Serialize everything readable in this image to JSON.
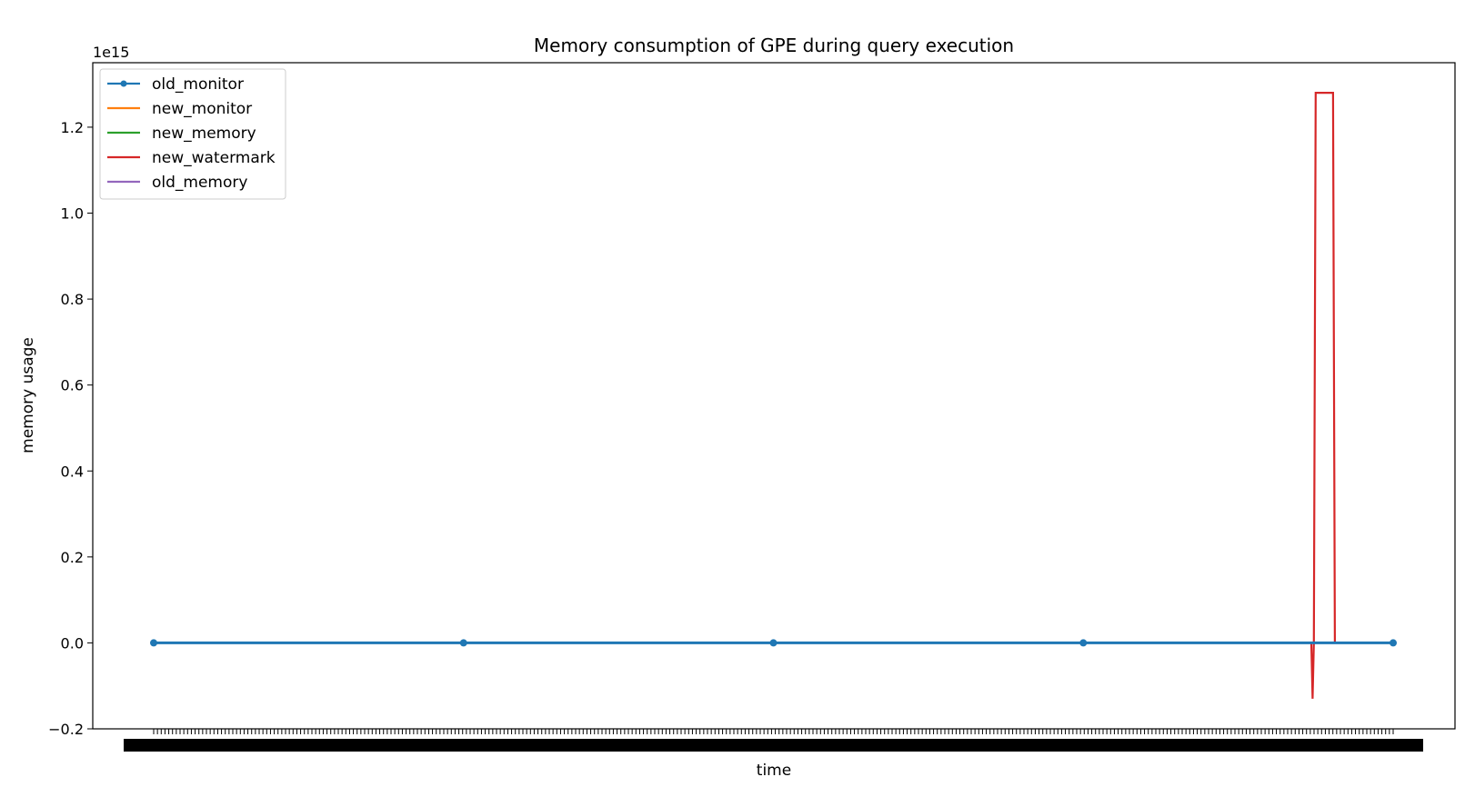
{
  "chart_data": {
    "type": "line",
    "title": "Memory consumption of GPE during query execution",
    "xlabel": "time",
    "ylabel": "memory usage",
    "y_offset_label": "1e15",
    "ylim": [
      -0.2,
      1.35
    ],
    "y_ticks": [
      -0.2,
      0.0,
      0.2,
      0.4,
      0.6,
      0.8,
      1.0,
      1.2
    ],
    "y_tick_labels": [
      "−0.2",
      "0.0",
      "0.2",
      "0.4",
      "0.6",
      "0.8",
      "1.0",
      "1.2"
    ],
    "x_range": [
      0,
      1
    ],
    "x_tick_count": 330,
    "grid": false,
    "legend_position": "upper-left",
    "series": [
      {
        "name": "old_monitor",
        "color": "#1f77b4",
        "marker": "dot",
        "x": [
          0,
          0.25,
          0.5,
          0.75,
          1.0
        ],
        "values": [
          0,
          0,
          0,
          0,
          0
        ]
      },
      {
        "name": "new_monitor",
        "color": "#ff7f0e",
        "marker": "none",
        "x": [
          0,
          1.0
        ],
        "values": [
          0,
          0
        ]
      },
      {
        "name": "new_memory",
        "color": "#2ca02c",
        "marker": "none",
        "x": [
          0,
          1.0
        ],
        "values": [
          0,
          0
        ]
      },
      {
        "name": "new_watermark",
        "color": "#d62728",
        "marker": "none",
        "x": [
          0,
          0.934,
          0.935,
          0.936,
          0.9375,
          0.938,
          0.9515,
          0.953,
          1.0
        ],
        "values": [
          0,
          0,
          -0.13,
          0.0,
          1.28,
          1.28,
          1.28,
          0.0,
          0
        ]
      },
      {
        "name": "old_memory",
        "color": "#9467bd",
        "marker": "none",
        "x": [
          0,
          1.0
        ],
        "values": [
          0,
          0
        ]
      }
    ]
  }
}
